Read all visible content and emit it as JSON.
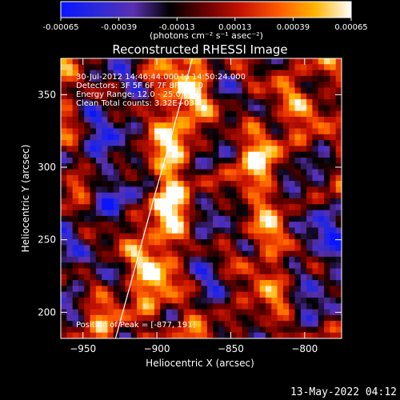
{
  "colorbar": {
    "ticks": [
      "-0.00065",
      "-0.00039",
      "-0.00013",
      "0.00013",
      "0.00039",
      "0.00065"
    ],
    "unit_label": "(photons cm⁻² s⁻¹ asec⁻²)",
    "stops": [
      "#0a14ff",
      "#2a2ad8",
      "#5a30b0",
      "#000000",
      "#6a0000",
      "#c81400",
      "#ff5a00",
      "#ffb400",
      "#ffffff"
    ],
    "range": [
      -0.00065,
      0.00065
    ]
  },
  "chart_data": {
    "type": "heatmap",
    "title": "Reconstructed RHESSI Image",
    "xlabel": "Heliocentric X (arcsec)",
    "ylabel": "Heliocentric Y (arcsec)",
    "xlim": [
      -965,
      -775
    ],
    "ylim": [
      182,
      375
    ],
    "x_ticks": [
      -950,
      -900,
      -850,
      -800
    ],
    "y_ticks": [
      200,
      250,
      300,
      350
    ],
    "annotations": [
      "30-Jul-2012 14:46:44.000 to 14:50:24.000",
      "Detectors: 3F 5F 6F 7F 8F, Att 0",
      "Energy Range: 12.0 - 25.0 keV",
      "Clean     Total counts: 3.32E+03"
    ],
    "peak_label": "Position of Peak = [-877, 191]",
    "limb_curve": [
      [
        -928,
        182
      ],
      [
        -915,
        230
      ],
      [
        -903,
        275
      ],
      [
        -890,
        322
      ],
      [
        -876,
        375
      ]
    ],
    "grid": false,
    "colors": {
      "background": "#000000",
      "text": "#ffffff",
      "axes": "#ffffff"
    }
  },
  "footer": {
    "timestamp": "13-May-2022 04:12"
  }
}
